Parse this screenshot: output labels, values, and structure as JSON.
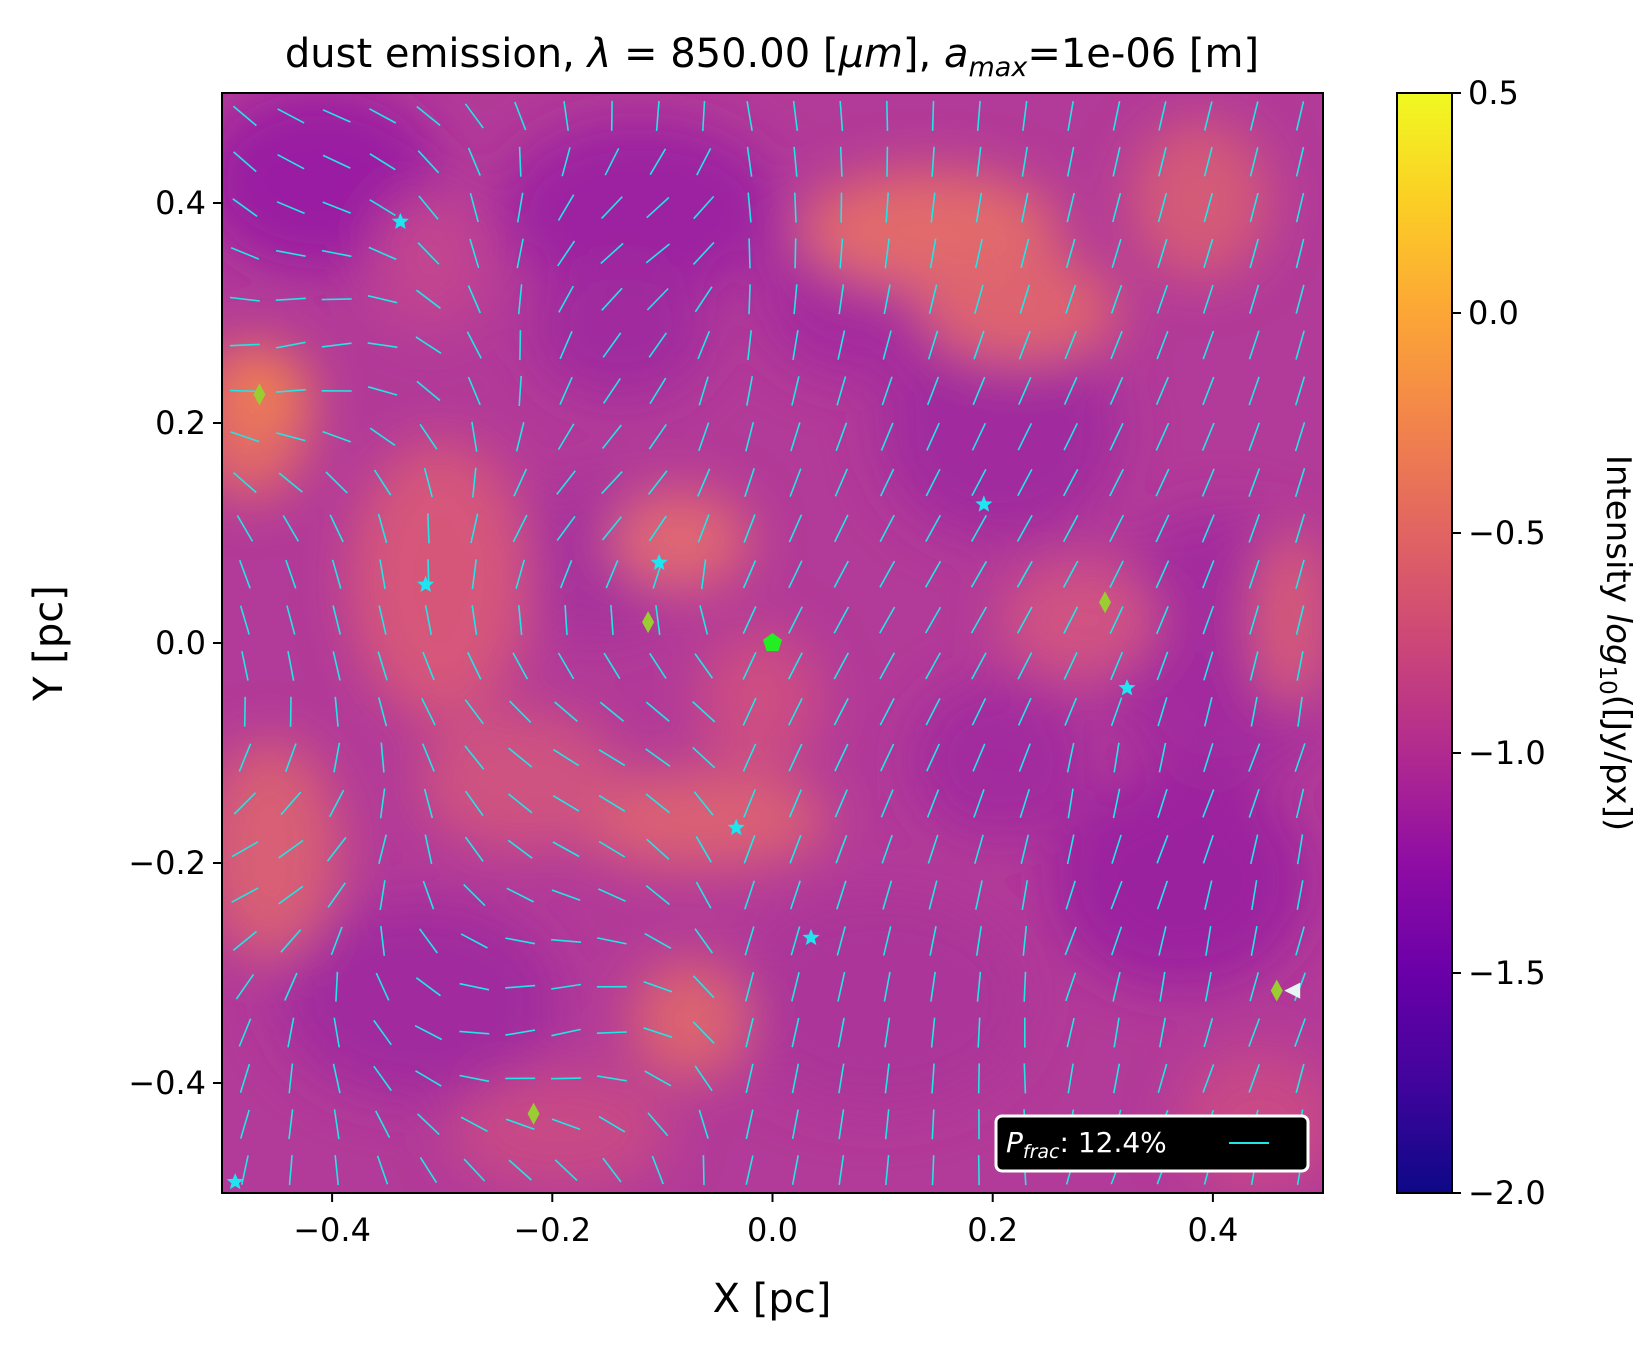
{
  "chart_data": {
    "type": "heatmap",
    "title": {
      "prefix": "dust emission, ",
      "lambda_symbol": "λ",
      "eq": " = 850.00 [",
      "unit_greek": "μm",
      "mid": "], ",
      "a_symbol": "a",
      "a_sub": "max",
      "suffix": "=1e-06 [m]"
    },
    "xlabel": "X [pc]",
    "ylabel": "Y [pc]",
    "xlim": [
      -0.5,
      0.5
    ],
    "ylim": [
      -0.5,
      0.5
    ],
    "xticks": [
      -0.4,
      -0.2,
      0.0,
      0.2,
      0.4
    ],
    "yticks": [
      -0.4,
      -0.2,
      0.0,
      0.2,
      0.4
    ],
    "xtick_labels": [
      "−0.4",
      "−0.2",
      "0.0",
      "0.2",
      "0.4"
    ],
    "ytick_labels": [
      "−0.4",
      "−0.2",
      "0.0",
      "0.2",
      "0.4"
    ],
    "colormap": "plasma",
    "colorbar": {
      "label_prefix": "Intensity ",
      "label_log": "log",
      "label_log_sub": "10",
      "label_suffix": "([Jy/px])",
      "range": [
        -2.0,
        0.5
      ],
      "ticks": [
        -2.0,
        -1.5,
        -1.0,
        -0.5,
        0.0,
        0.5
      ],
      "tick_labels": [
        "−2.0",
        "−1.5",
        "−1.0",
        "−0.5",
        "0.0",
        "0.5"
      ]
    },
    "legend": {
      "placement": "lower-right",
      "label_symbol": "P",
      "label_sub": "frac",
      "label_value": ": 12.4%",
      "line_color": "#22e5e5"
    },
    "vector_color": "#22e5e5",
    "stars": [
      {
        "x": -0.338,
        "y": 0.383
      },
      {
        "x": -0.315,
        "y": 0.053
      },
      {
        "x": -0.103,
        "y": 0.073
      },
      {
        "x": 0.192,
        "y": 0.126
      },
      {
        "x": 0.322,
        "y": -0.041
      },
      {
        "x": -0.033,
        "y": -0.168
      },
      {
        "x": 0.035,
        "y": -0.268
      },
      {
        "x": -0.488,
        "y": -0.49
      }
    ],
    "star_color": "#1ee5f0",
    "diamonds": [
      {
        "x": -0.466,
        "y": 0.226
      },
      {
        "x": -0.113,
        "y": 0.019
      },
      {
        "x": 0.302,
        "y": 0.037
      },
      {
        "x": -0.217,
        "y": -0.428
      },
      {
        "x": 0.458,
        "y": -0.316
      }
    ],
    "diamond_color": "#9acd32",
    "pentagon": {
      "x": 0.0,
      "y": 0.0,
      "color": "#22ee22"
    },
    "triangle": {
      "x": 0.472,
      "y": -0.316,
      "color": "#e8f4f4"
    }
  }
}
